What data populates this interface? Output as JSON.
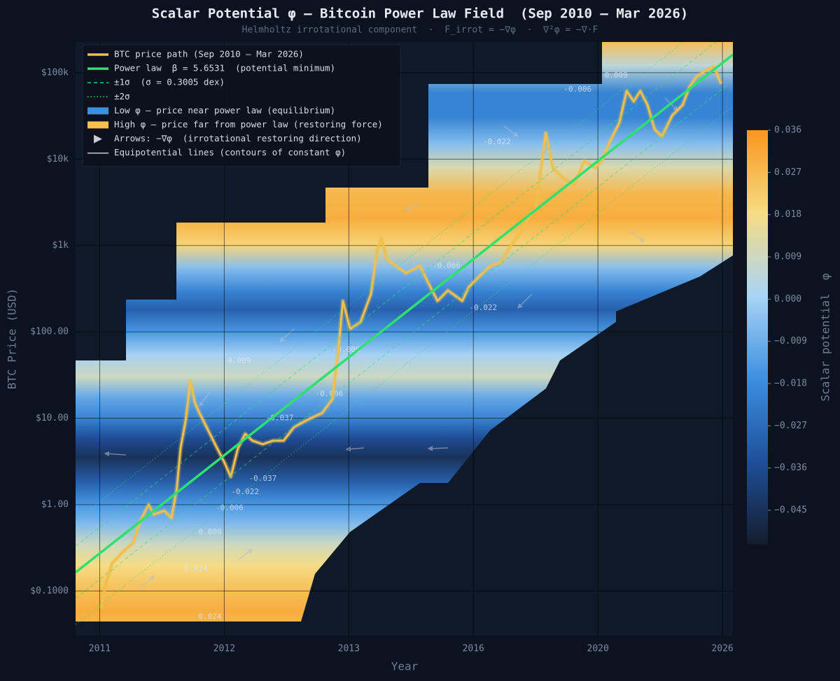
{
  "chart_data": {
    "type": "line",
    "title": "Scalar Potential φ — Bitcoin Power Law Field  (Sep 2010 – Mar 2026)",
    "subtitle": "Helmholtz irrotational component  ·  F_irrot = −∇φ  ·  ∇²φ = −∇·F",
    "x_label": "Year",
    "y_label": "BTC Price (USD)",
    "y_log": true,
    "grid": true,
    "xlim": [
      2.789,
      3.797
    ],
    "xticks": [
      {
        "value": 2.826,
        "label": "2011"
      },
      {
        "value": 3.017,
        "label": "2012"
      },
      {
        "value": 3.208,
        "label": "2013"
      },
      {
        "value": 3.399,
        "label": "2016"
      },
      {
        "value": 3.59,
        "label": "2020"
      },
      {
        "value": 3.781,
        "label": "2026"
      }
    ],
    "ylim": [
      0.0305,
      227000
    ],
    "yticks": [
      {
        "value": 0.1,
        "label": "$0.1000"
      },
      {
        "value": 1,
        "label": "$1.00"
      },
      {
        "value": 10,
        "label": "$10.00"
      },
      {
        "value": 100,
        "label": "$100.00"
      },
      {
        "value": 1000,
        "label": "$1k"
      },
      {
        "value": 10000,
        "label": "$10k"
      },
      {
        "value": 100000,
        "label": "$100k"
      }
    ],
    "series": [
      {
        "name": "BTC price path (Sep 2010 – Mar 2026)",
        "color": "#f0bf4c",
        "x": [
          2.829,
          2.834,
          2.845,
          2.861,
          2.877,
          2.888,
          2.901,
          2.909,
          2.925,
          2.936,
          2.944,
          2.95,
          2.958,
          2.965,
          2.972,
          2.979,
          2.995,
          3.006,
          3.017,
          3.027,
          3.038,
          3.049,
          3.06,
          3.076,
          3.092,
          3.108,
          3.124,
          3.145,
          3.167,
          3.183,
          3.192,
          3.199,
          3.21,
          3.226,
          3.242,
          3.251,
          3.258,
          3.266,
          3.28,
          3.296,
          3.317,
          3.333,
          3.344,
          3.36,
          3.382,
          3.392,
          3.408,
          3.425,
          3.441,
          3.457,
          3.473,
          3.484,
          3.494,
          3.5,
          3.51,
          3.521,
          3.537,
          3.553,
          3.569,
          3.586,
          3.596,
          3.607,
          3.623,
          3.634,
          3.645,
          3.655,
          3.666,
          3.677,
          3.688,
          3.704,
          3.72,
          3.73,
          3.741,
          3.757,
          3.768,
          3.779
        ],
        "values": [
          0.064,
          0.11,
          0.21,
          0.28,
          0.36,
          0.64,
          1.0,
          0.77,
          0.85,
          0.7,
          1.5,
          4.5,
          9.6,
          27,
          15,
          11.5,
          6.6,
          4.5,
          3.1,
          2.1,
          4.5,
          6.6,
          5.5,
          5.0,
          5.5,
          5.5,
          7.9,
          9.6,
          11.5,
          16.7,
          62,
          228,
          108,
          130,
          275,
          841,
          1220,
          700,
          580,
          480,
          580,
          331,
          228,
          302,
          228,
          331,
          438,
          580,
          637,
          1010,
          1480,
          2140,
          2580,
          5400,
          20100,
          7900,
          5970,
          4950,
          9530,
          7900,
          9530,
          15200,
          26600,
          61500,
          46600,
          61500,
          42400,
          22100,
          18300,
          32100,
          42400,
          67600,
          89400,
          108000,
          118000,
          74100
        ]
      },
      {
        "name": "Power law  β = 5.6531  (potential minimum)",
        "color": "#2ee06e",
        "x": [
          2.789,
          3.797
        ],
        "values": [
          0.164,
          162000
        ]
      },
      {
        "name": "±1σ  (σ = 0.3005 dex)",
        "color": "#2ee06e",
        "style": "dashed",
        "x": [
          2.789,
          3.797
        ],
        "upper": [
          0.33,
          323000
        ],
        "lower": [
          0.082,
          81000
        ]
      },
      {
        "name": "±2σ",
        "color": "#2ee06e",
        "style": "dotted",
        "x": [
          2.789,
          3.797
        ],
        "upper": [
          0.65,
          645000
        ],
        "lower": [
          0.041,
          40600
        ]
      }
    ],
    "legend_items": [
      {
        "name": "Low φ — price near power law (equilibrium)",
        "color": "#3d8fe0",
        "kind": "patch"
      },
      {
        "name": "High φ — price far from power law (restoring force)",
        "color": "#f6c04a",
        "kind": "patch"
      },
      {
        "name": "Arrows: −∇φ  (irrotational restoring direction)",
        "color": "#c8ccd4",
        "kind": "arrow"
      },
      {
        "name": "Equipotential lines (contours of constant φ)",
        "color": "#c8ccd4",
        "kind": "line"
      }
    ],
    "legend": "upper left",
    "field": {
      "y": [
        0.03,
        0.06,
        0.1,
        0.2,
        0.35,
        0.6,
        1.0,
        1.8,
        3.5,
        6,
        10,
        18,
        30,
        55,
        100,
        180,
        300,
        550,
        1000,
        2000,
        4000,
        8000,
        15000,
        30000,
        60000,
        120000,
        230000
      ],
      "values": [
        0.027,
        0.03,
        0.026,
        0.018,
        0.009,
        -0.006,
        -0.015,
        -0.03,
        -0.045,
        -0.035,
        -0.02,
        -0.01,
        0.009,
        0.0,
        -0.015,
        -0.03,
        -0.02,
        -0.005,
        0.02,
        0.03,
        0.028,
        0.012,
        -0.005,
        -0.02,
        -0.02,
        0.005,
        0.026
      ],
      "clim": [
        -0.0523,
        0.036
      ],
      "colormap": [
        "#141c2b",
        "#1f4f9a",
        "#3d8fe0",
        "#a9d4f5",
        "#f6dc84",
        "#f8961c"
      ],
      "label": "Scalar potential  φ",
      "ticks": [
        0.036,
        0.027,
        0.018,
        0.009,
        {
          "value": 0,
          "label": "0.000"
        },
        {
          "value": -0.009,
          "label": "−0.009"
        },
        {
          "value": -0.018,
          "label": "−0.018"
        },
        {
          "value": -0.027,
          "label": "−0.027"
        },
        {
          "value": -0.036,
          "label": "−0.036"
        },
        {
          "value": -0.045,
          "label": "−0.045"
        }
      ]
    },
    "contour_labels": [
      {
        "label": "0.009",
        "x": 3.04,
        "y": 46
      },
      {
        "label": "0.009",
        "x": 3.618,
        "y": 93000
      },
      {
        "label": "-0.006",
        "x": 3.559,
        "y": 64000
      },
      {
        "label": "-0.022",
        "x": 3.435,
        "y": 15800
      },
      {
        "label": "-0.006",
        "x": 3.358,
        "y": 580
      },
      {
        "label": "-0.022",
        "x": 3.414,
        "y": 189
      },
      {
        "label": "-0.006",
        "x": 3.204,
        "y": 62
      },
      {
        "label": "-0.006",
        "x": 3.178,
        "y": 19
      },
      {
        "label": "-0.037",
        "x": 3.102,
        "y": 10
      },
      {
        "label": "-0.037",
        "x": 3.076,
        "y": 2.0
      },
      {
        "label": "-0.022",
        "x": 3.049,
        "y": 1.4
      },
      {
        "label": "-0.006",
        "x": 3.025,
        "y": 0.91
      },
      {
        "label": "0.009",
        "x": 2.995,
        "y": 0.48
      },
      {
        "label": "0.024",
        "x": 2.974,
        "y": 0.18
      },
      {
        "label": "0.024",
        "x": 2.995,
        "y": 0.05
      }
    ]
  }
}
